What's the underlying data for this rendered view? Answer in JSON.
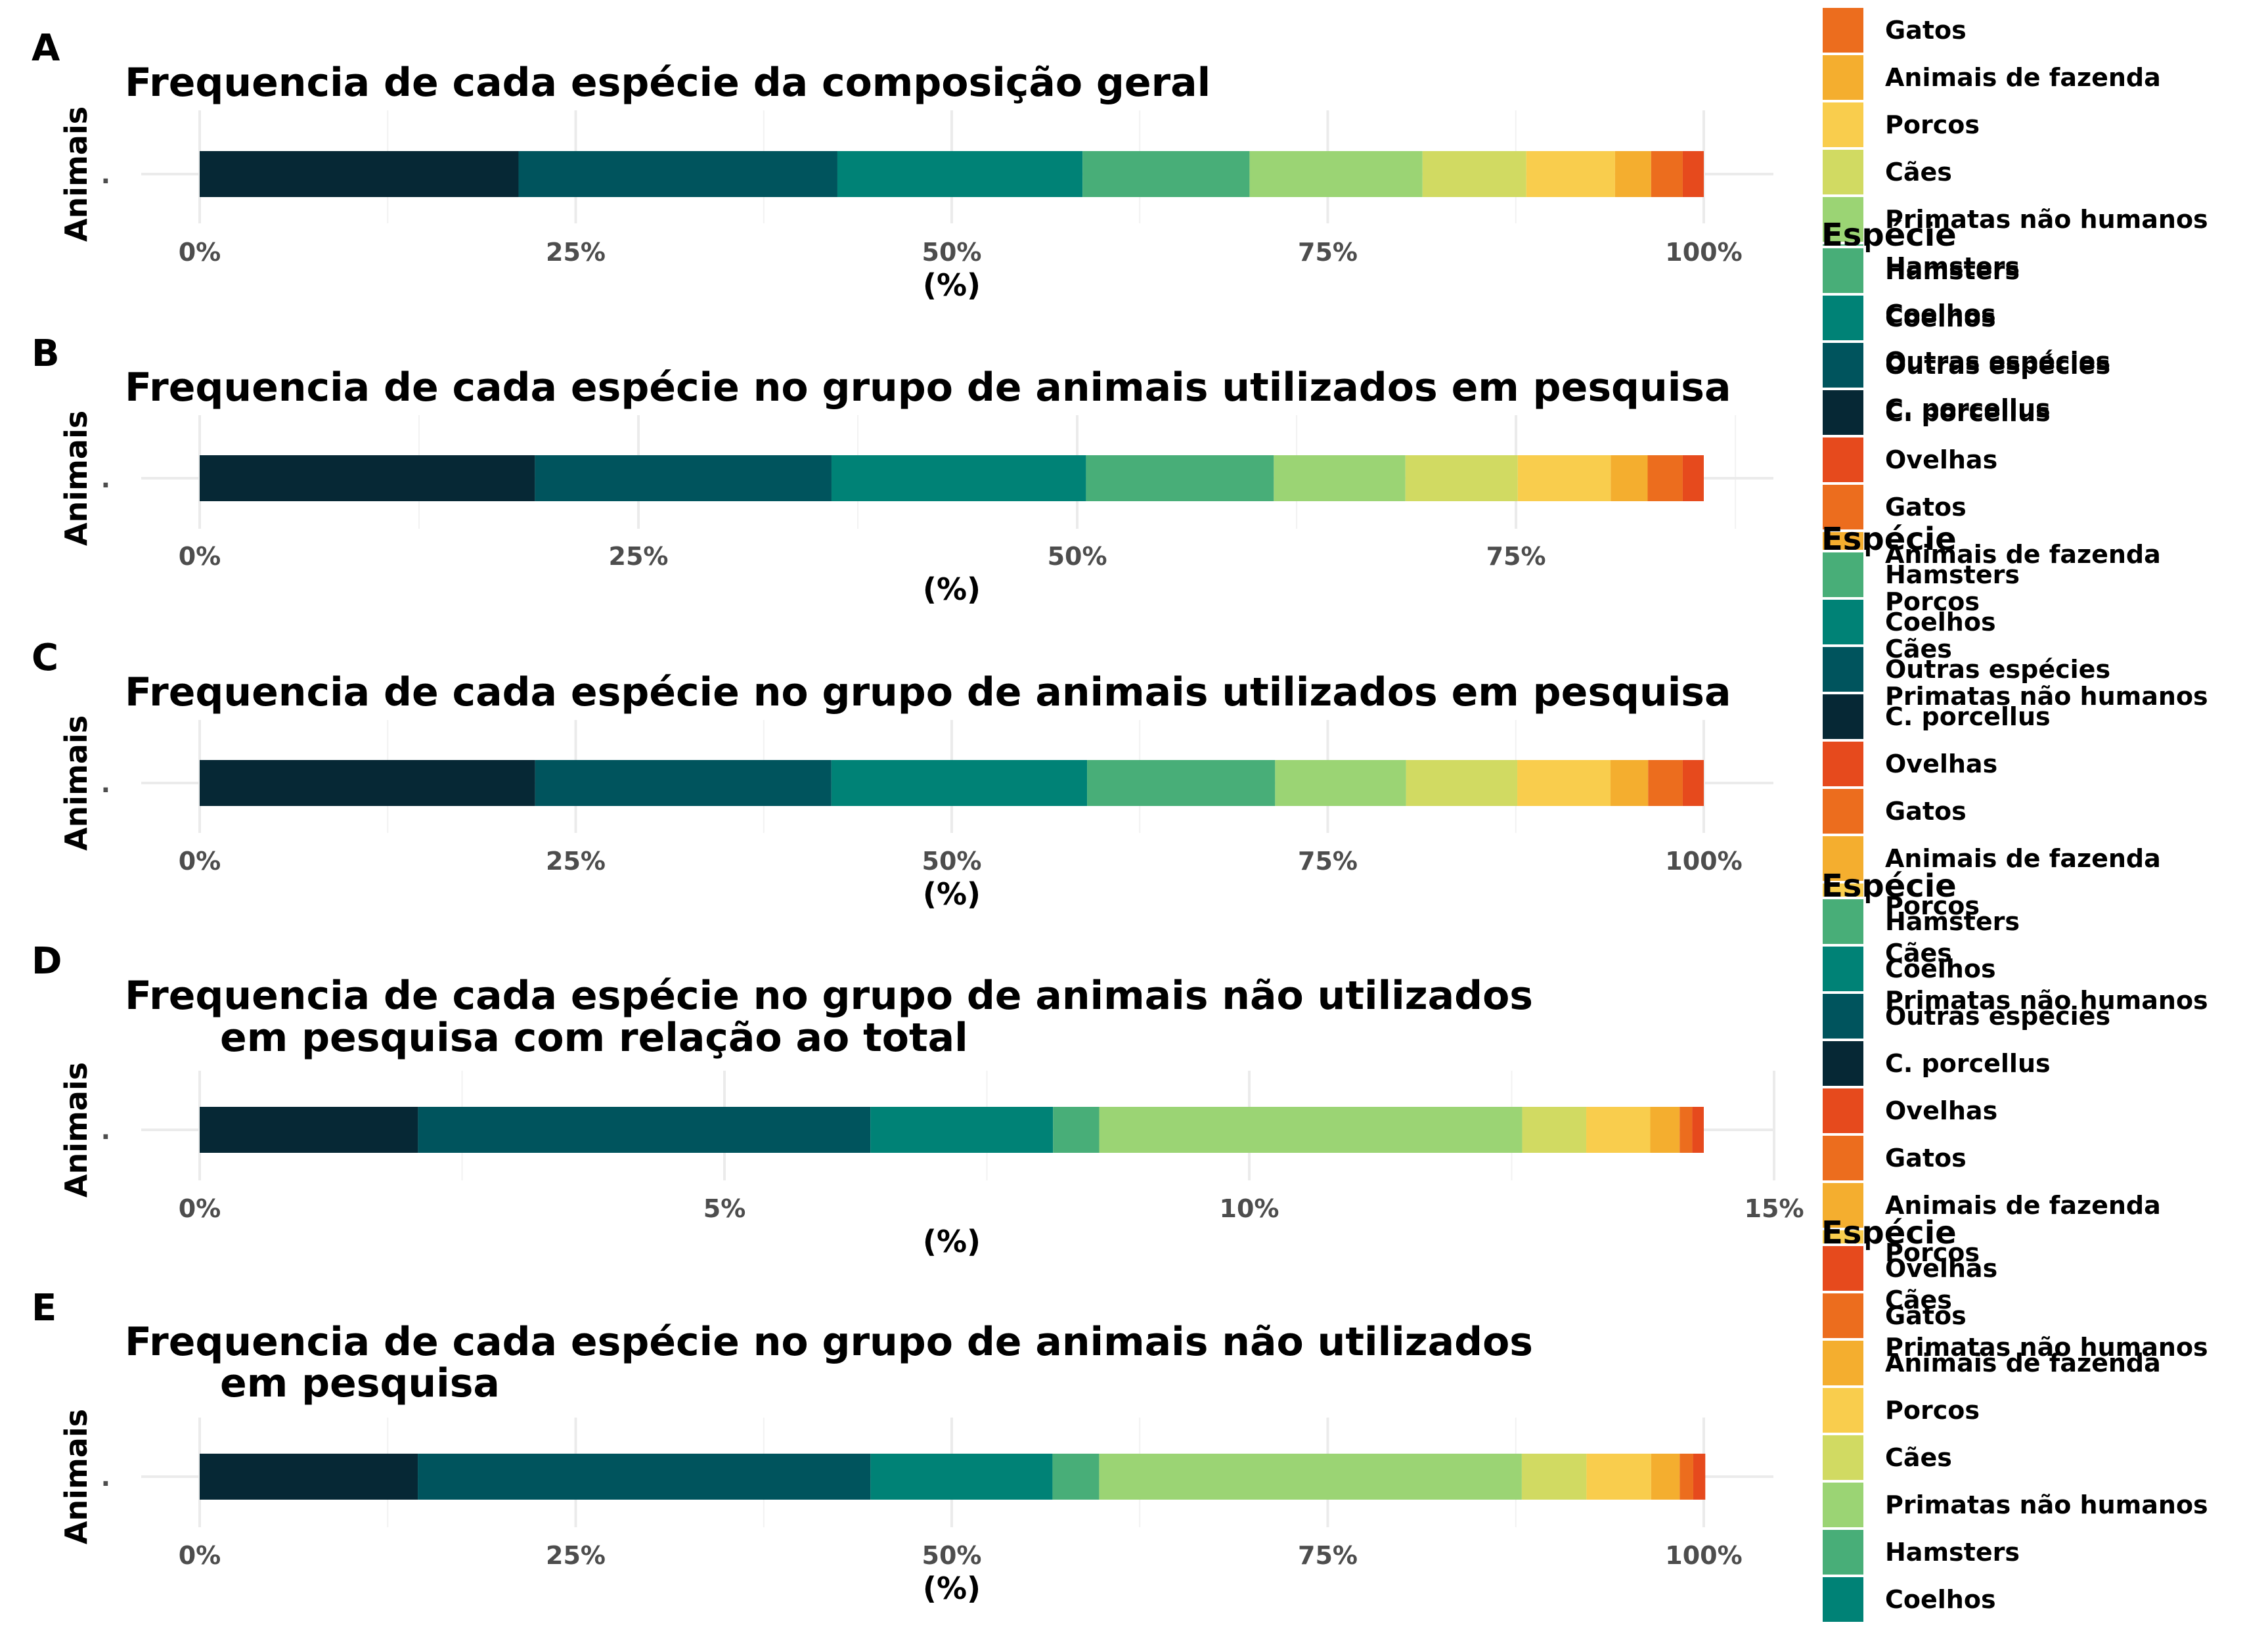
{
  "chart_data": [
    {
      "type": "bar",
      "orientation": "horizontal-stacked",
      "panel": "A",
      "title": "Frequencia de cada espécie da composição geral",
      "xlabel": "(%)",
      "ylabel": "Animais",
      "category": ".",
      "xlim": [
        0,
        100
      ],
      "xticks": [
        "0%",
        "25%",
        "50%",
        "75%",
        "100%"
      ],
      "xtick_values": [
        0,
        25,
        50,
        75,
        100
      ],
      "series": [
        {
          "name": "C. porcellus",
          "value": 21.2
        },
        {
          "name": "Outras espécies",
          "value": 21.2
        },
        {
          "name": "Coelhos",
          "value": 16.3
        },
        {
          "name": "Hamsters",
          "value": 11.1
        },
        {
          "name": "Primatas não humanos",
          "value": 11.5
        },
        {
          "name": "Cães",
          "value": 6.9
        },
        {
          "name": "Porcos",
          "value": 5.9
        },
        {
          "name": "Animais de fazenda",
          "value": 2.4
        },
        {
          "name": "Gatos",
          "value": 2.1
        },
        {
          "name": "Ovelhas",
          "value": 1.4
        }
      ],
      "legend": {
        "title": "",
        "items": [
          "Gatos",
          "Animais de fazenda",
          "Porcos",
          "Cães",
          "Primatas não humanos",
          "Hamsters",
          "Coelhos",
          "Outras espécies",
          "C. porcellus"
        ],
        "colors": [
          "#EC6D1E",
          "#F4AE2F",
          "#F9CD4D",
          "#D1DA62",
          "#9BD474",
          "#48AE78",
          "#008276",
          "#00545D",
          "#062835"
        ]
      }
    },
    {
      "type": "bar",
      "orientation": "horizontal-stacked",
      "panel": "B",
      "title": "Frequencia de cada espécie no grupo de animais utilizados em pesquisa",
      "xlabel": "(%)",
      "ylabel": "Animais",
      "category": ".",
      "xlim": [
        0,
        85.7
      ],
      "xticks": [
        "0%",
        "25%",
        "50%",
        "75%"
      ],
      "xtick_values": [
        0,
        25,
        50,
        75
      ],
      "series": [
        {
          "name": "C. porcellus",
          "value": 19.1
        },
        {
          "name": "Outras espécies",
          "value": 16.9
        },
        {
          "name": "Coelhos",
          "value": 14.5
        },
        {
          "name": "Hamsters",
          "value": 10.7
        },
        {
          "name": "Primatas não humanos",
          "value": 7.5
        },
        {
          "name": "Cães",
          "value": 6.4
        },
        {
          "name": "Porcos",
          "value": 5.3
        },
        {
          "name": "Animais de fazenda",
          "value": 2.1
        },
        {
          "name": "Gatos",
          "value": 2.0
        },
        {
          "name": "Ovelhas",
          "value": 1.2
        }
      ],
      "legend": {
        "title": "Espécie",
        "items": [
          "Hamsters",
          "Coelhos",
          "Outras espécies",
          "C. porcellus",
          "Ovelhas",
          "Gatos",
          "Animais de fazenda",
          "Porcos",
          "Cães",
          "Primatas não humanos"
        ],
        "colors": [
          "#48AE78",
          "#008276",
          "#00545D",
          "#062835",
          "#E64A1D",
          "#EC6D1E",
          "#F4AE2F",
          "#F9CD4D",
          "#D1DA62",
          "#9BD474"
        ]
      }
    },
    {
      "type": "bar",
      "orientation": "horizontal-stacked",
      "panel": "C",
      "title": "Frequencia de cada espécie no grupo de animais utilizados em pesquisa",
      "xlabel": "(%)",
      "ylabel": "Animais",
      "category": ".",
      "xlim": [
        0,
        100
      ],
      "xticks": [
        "0%",
        "25%",
        "50%",
        "75%",
        "100%"
      ],
      "xtick_values": [
        0,
        25,
        50,
        75,
        100
      ],
      "series": [
        {
          "name": "C. porcellus",
          "value": 22.3
        },
        {
          "name": "Outras espécies",
          "value": 19.7
        },
        {
          "name": "Coelhos",
          "value": 17.0
        },
        {
          "name": "Hamsters",
          "value": 12.5
        },
        {
          "name": "Primatas não humanos",
          "value": 8.7
        },
        {
          "name": "Cães",
          "value": 7.4
        },
        {
          "name": "Porcos",
          "value": 6.2
        },
        {
          "name": "Animais de fazenda",
          "value": 2.5
        },
        {
          "name": "Gatos",
          "value": 2.3
        },
        {
          "name": "Ovelhas",
          "value": 1.4
        }
      ],
      "legend": {
        "title": "Espécie",
        "items": [
          "Hamsters",
          "Coelhos",
          "Outras espécies",
          "C. porcellus",
          "Ovelhas",
          "Gatos",
          "Animais de fazenda",
          "Porcos",
          "Cães",
          "Primatas não humanos"
        ],
        "colors": [
          "#48AE78",
          "#008276",
          "#00545D",
          "#062835",
          "#E64A1D",
          "#EC6D1E",
          "#F4AE2F",
          "#F9CD4D",
          "#D1DA62",
          "#9BD474"
        ]
      }
    },
    {
      "type": "bar",
      "orientation": "horizontal-stacked",
      "panel": "D",
      "title": "Frequencia de cada espécie no grupo de animais não utilizados",
      "title_line2": "em pesquisa com relação ao total",
      "xlabel": "(%)",
      "ylabel": "Animais",
      "category": ".",
      "xlim": [
        0,
        14.33
      ],
      "xticks": [
        "0%",
        "5%",
        "10%",
        "15%"
      ],
      "xtick_values": [
        0,
        5,
        10,
        15
      ],
      "series": [
        {
          "name": "C. porcellus",
          "value": 2.08
        },
        {
          "name": "Outras espécies",
          "value": 4.31
        },
        {
          "name": "Coelhos",
          "value": 1.74
        },
        {
          "name": "Hamsters",
          "value": 0.44
        },
        {
          "name": "Primatas não humanos",
          "value": 4.03
        },
        {
          "name": "Cães",
          "value": 0.61
        },
        {
          "name": "Porcos",
          "value": 0.61
        },
        {
          "name": "Animais de fazenda",
          "value": 0.28
        },
        {
          "name": "Gatos",
          "value": 0.12
        },
        {
          "name": "Ovelhas",
          "value": 0.11
        }
      ],
      "legend": {
        "title": "Espécie",
        "items": [
          "Hamsters",
          "Coelhos",
          "Outras espécies",
          "C. porcellus",
          "Ovelhas",
          "Gatos",
          "Animais de fazenda",
          "Porcos",
          "Cães",
          "Primatas não humanos"
        ],
        "colors": [
          "#48AE78",
          "#008276",
          "#00545D",
          "#062835",
          "#E64A1D",
          "#EC6D1E",
          "#F4AE2F",
          "#F9CD4D",
          "#D1DA62",
          "#9BD474"
        ]
      }
    },
    {
      "type": "bar",
      "orientation": "horizontal-stacked",
      "panel": "E",
      "title": "Frequencia de cada espécie no grupo de animais não utilizados",
      "title_line2": "em pesquisa",
      "xlabel": "(%)",
      "ylabel": "Animais",
      "category": ".",
      "xlim": [
        0,
        100
      ],
      "xticks": [
        "0%",
        "25%",
        "50%",
        "75%",
        "100%"
      ],
      "xtick_values": [
        0,
        25,
        50,
        75,
        100
      ],
      "series": [
        {
          "name": "C. porcellus",
          "value": 14.5
        },
        {
          "name": "Outras espécies",
          "value": 30.1
        },
        {
          "name": "Coelhos",
          "value": 12.1
        },
        {
          "name": "Hamsters",
          "value": 3.1
        },
        {
          "name": "Primatas não humanos",
          "value": 28.1
        },
        {
          "name": "Cães",
          "value": 4.3
        },
        {
          "name": "Porcos",
          "value": 4.3
        },
        {
          "name": "Animais de fazenda",
          "value": 1.9
        },
        {
          "name": "Gatos",
          "value": 0.9
        },
        {
          "name": "Ovelhas",
          "value": 0.8
        }
      ],
      "legend": {
        "title": "Espécie",
        "items": [
          "Ovelhas",
          "Gatos",
          "Animais de fazenda",
          "Porcos",
          "Cães",
          "Primatas não humanos",
          "Hamsters",
          "Coelhos"
        ],
        "colors": [
          "#E64A1D",
          "#EC6D1E",
          "#F4AE2F",
          "#F9CD4D",
          "#D1DA62",
          "#9BD474",
          "#48AE78",
          "#008276"
        ]
      }
    }
  ],
  "series_colors": {
    "C. porcellus": "#062835",
    "Outras espécies": "#00545D",
    "Coelhos": "#008276",
    "Hamsters": "#48AE78",
    "Primatas não humanos": "#9BD474",
    "Cães": "#D1DA62",
    "Porcos": "#F9CD4D",
    "Animais de fazenda": "#F4AE2F",
    "Gatos": "#EC6D1E",
    "Ovelhas": "#E64A1D"
  }
}
